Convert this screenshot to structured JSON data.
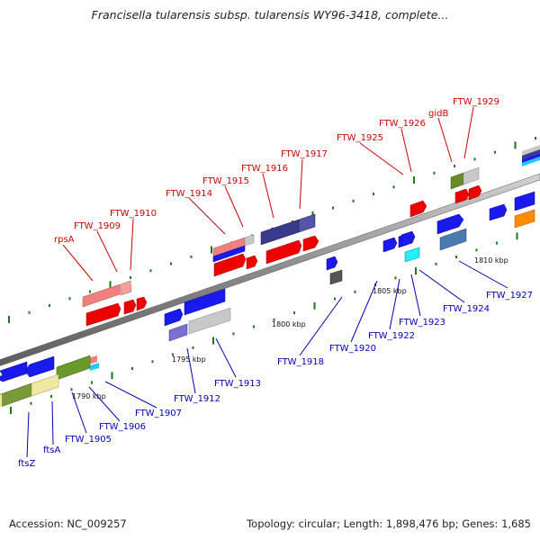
{
  "title": "Francisella tularensis subsp. tularensis WY96-3418, complete...",
  "footer": {
    "accession": "Accession: NC_009257",
    "topology": "Topology: circular; Length: 1,898,476 bp; Genes: 1,685"
  },
  "colors": {
    "top_label": "#cc0000",
    "bottom_label": "#0000bb",
    "tick": "#1a7a1a"
  },
  "ruler_labels": [
    "1790 kbp",
    "1795 kbp",
    "1800 kbp",
    "1805 kbp",
    "1810 kbp"
  ],
  "labels_top": [
    "rpsA",
    "FTW_1909",
    "FTW_1910",
    "FTW_1914",
    "FTW_1915",
    "FTW_1916",
    "FTW_1917",
    "FTW_1925",
    "FTW_1926",
    "gidB",
    "FTW_1929"
  ],
  "labels_bottom": [
    "ftsZ",
    "ftsA",
    "FTW_1905",
    "FTW_1906",
    "FTW_1907",
    "FTW_1912",
    "FTW_1913",
    "FTW_1918",
    "FTW_1920",
    "FTW_1922",
    "FTW_1923",
    "FTW_1924",
    "FTW_1927"
  ]
}
